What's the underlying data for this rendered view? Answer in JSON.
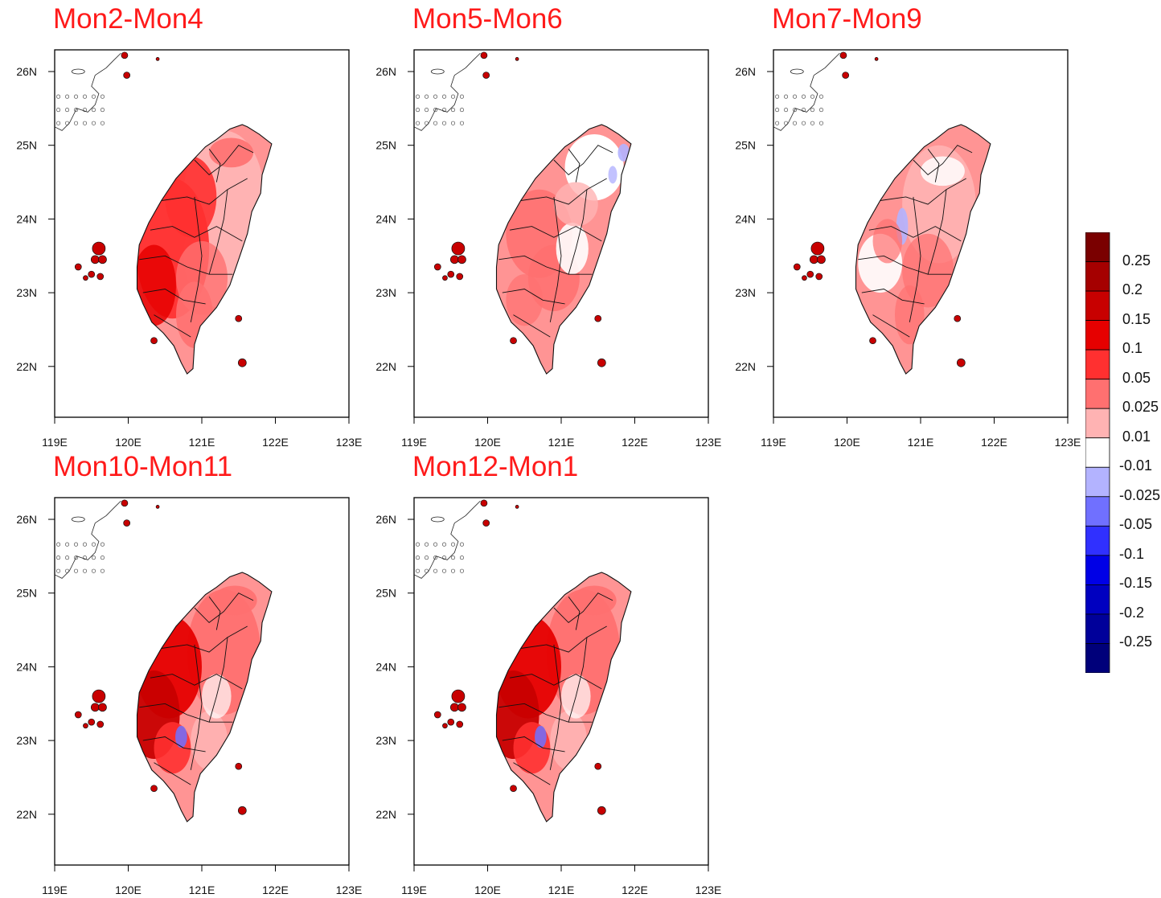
{
  "figure": {
    "x_ticks": [
      "119E",
      "120E",
      "121E",
      "122E",
      "123E"
    ],
    "y_ticks": [
      "26N",
      "25N",
      "24N",
      "23N",
      "22N"
    ],
    "panels": [
      {
        "id": "p1",
        "title": "Mon2-Mon4",
        "pattern": "strong-west"
      },
      {
        "id": "p2",
        "title": "Mon5-Mon6",
        "pattern": "mixed-light"
      },
      {
        "id": "p3",
        "title": "Mon7-Mon9",
        "pattern": "mixed-light-blue-center"
      },
      {
        "id": "p4",
        "title": "Mon10-Mon11",
        "pattern": "very-strong-west"
      },
      {
        "id": "p5",
        "title": "Mon12-Mon1",
        "pattern": "very-strong-west"
      }
    ]
  },
  "colorbar": {
    "labels": [
      "0.25",
      "0.2",
      "0.15",
      "0.1",
      "0.05",
      "0.025",
      "0.01",
      "-0.01",
      "-0.025",
      "-0.05",
      "-0.1",
      "-0.15",
      "-0.2",
      "-0.25"
    ],
    "colors": [
      "#7a0000",
      "#a50000",
      "#c80000",
      "#e60000",
      "#ff3030",
      "#ff7070",
      "#ffb3b3",
      "#ffffff",
      "#b3b3ff",
      "#7070ff",
      "#3030ff",
      "#0000e6",
      "#0000c0",
      "#00009a",
      "#00007a"
    ]
  }
}
